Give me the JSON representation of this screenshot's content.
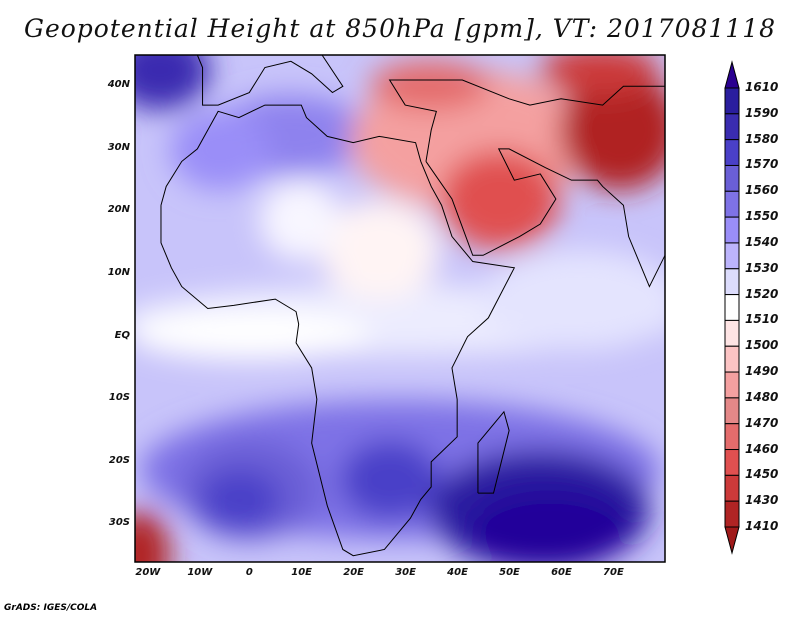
{
  "title": "Geopotential Height at 850hPa [gpm], VT: 2017081118",
  "credit": "GrADS: IGES/COLA",
  "map": {
    "lon_range": [
      -22,
      80
    ],
    "lat_range": [
      -36,
      45
    ],
    "lon_labels": [
      {
        "v": -20,
        "t": "20W"
      },
      {
        "v": -10,
        "t": "10W"
      },
      {
        "v": 0,
        "t": "0"
      },
      {
        "v": 10,
        "t": "10E"
      },
      {
        "v": 20,
        "t": "20E"
      },
      {
        "v": 30,
        "t": "30E"
      },
      {
        "v": 40,
        "t": "40E"
      },
      {
        "v": 50,
        "t": "50E"
      },
      {
        "v": 60,
        "t": "60E"
      },
      {
        "v": 70,
        "t": "70E"
      }
    ],
    "lat_labels": [
      {
        "v": 40,
        "t": "40N"
      },
      {
        "v": 30,
        "t": "30N"
      },
      {
        "v": 20,
        "t": "20N"
      },
      {
        "v": 10,
        "t": "10N"
      },
      {
        "v": 0,
        "t": "EQ"
      },
      {
        "v": -10,
        "t": "10S"
      },
      {
        "v": -20,
        "t": "20S"
      },
      {
        "v": -30,
        "t": "30S"
      }
    ]
  },
  "colorbar": {
    "labels": [
      "1610",
      "1590",
      "1580",
      "1570",
      "1560",
      "1550",
      "1540",
      "1530",
      "1520",
      "1510",
      "1500",
      "1490",
      "1480",
      "1470",
      "1460",
      "1450",
      "1430",
      "1410"
    ],
    "colors": [
      "#2a1e9e",
      "#3a2cb0",
      "#4a40c8",
      "#6a5fd6",
      "#7e72e6",
      "#9a8ef8",
      "#bcb4fc",
      "#dcdcfc",
      "#ffffff",
      "#fee4e4",
      "#fcc4c4",
      "#f4a0a0",
      "#e48888",
      "#e46c6c",
      "#e05050",
      "#cc3a3a",
      "#b02424"
    ],
    "top_arrow": "#2a0090",
    "bottom_arrow": "#a01a1a"
  }
}
